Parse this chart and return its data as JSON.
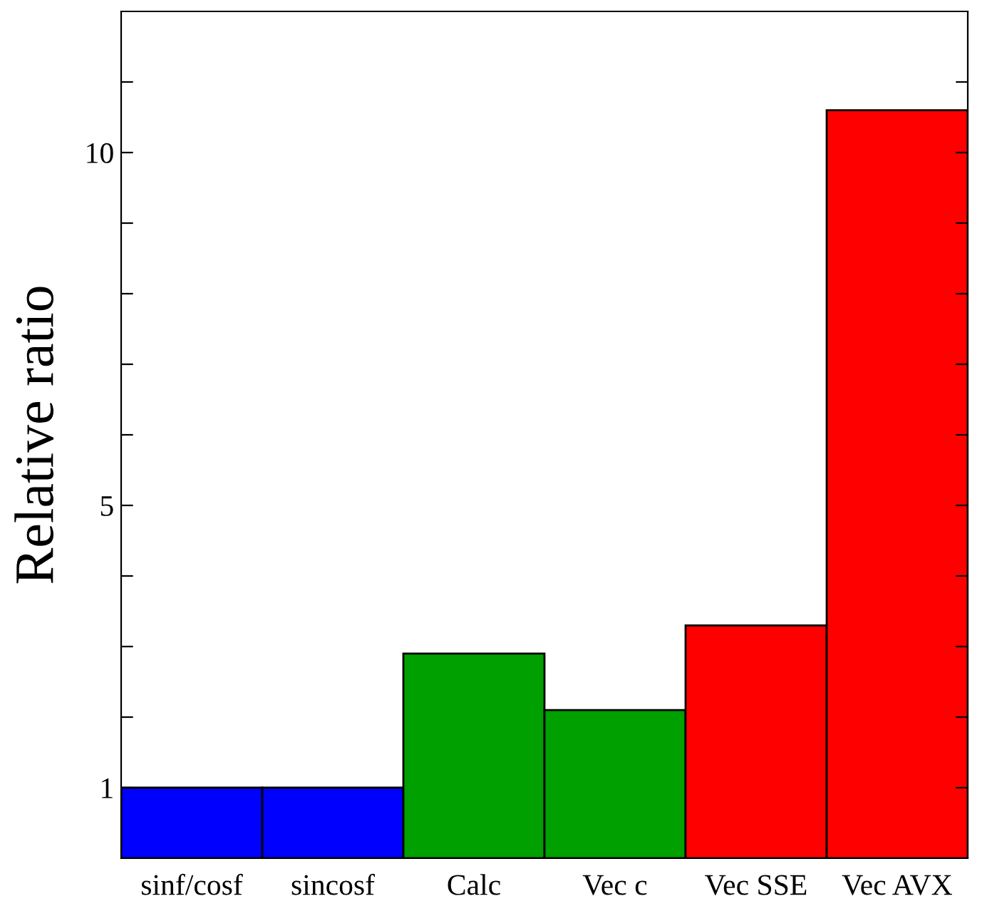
{
  "chart_data": {
    "type": "bar",
    "ylabel": "Relative ratio",
    "categories": [
      "sinf/cosf",
      "sincosf",
      "Calc",
      "Vec c",
      "Vec SSE",
      "Vec AVX"
    ],
    "values": [
      1.0,
      1.0,
      2.9,
      2.1,
      3.3,
      10.6
    ],
    "colors": [
      "#0000ff",
      "#0000ff",
      "#00a000",
      "#00a000",
      "#ff0000",
      "#ff0000"
    ],
    "ylim": [
      0,
      12
    ],
    "yticks": [
      1,
      {
        "value": 2,
        "label": null
      },
      {
        "value": 3,
        "label": null
      },
      {
        "value": 4,
        "label": null
      },
      5,
      {
        "value": 6,
        "label": null
      },
      {
        "value": 7,
        "label": null
      },
      {
        "value": 8,
        "label": null
      },
      {
        "value": 9,
        "label": null
      },
      10,
      {
        "value": 11,
        "label": null
      }
    ],
    "grid": false,
    "legend": false
  }
}
